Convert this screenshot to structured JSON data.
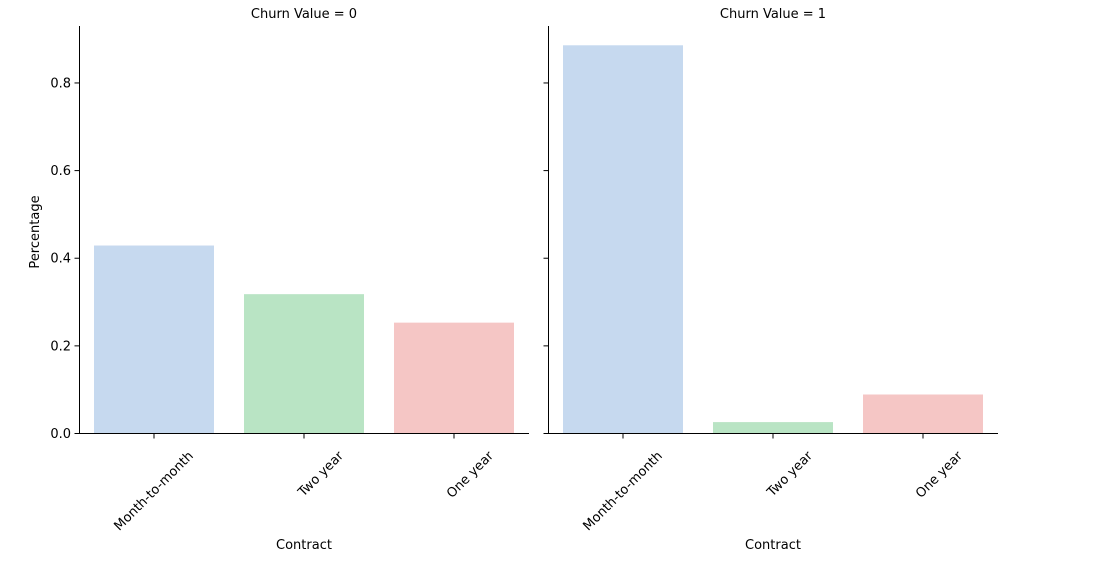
{
  "chart_data": {
    "type": "bar",
    "ylabel": "Percentage",
    "ylim": [
      0,
      0.93
    ],
    "yticks": [
      0.0,
      0.2,
      0.4,
      0.6,
      0.8
    ],
    "ytick_labels": [
      "0.0",
      "0.2",
      "0.4",
      "0.6",
      "0.8"
    ],
    "grid": false,
    "categories": [
      "Month-to-month",
      "Two year",
      "One year"
    ],
    "colors": [
      "#c6d9ef",
      "#b9e4c4",
      "#f5c6c5"
    ],
    "panels": [
      {
        "title": "Churn Value = 0",
        "xlabel": "Contract",
        "values": [
          0.429,
          0.318,
          0.253
        ]
      },
      {
        "title": "Churn Value = 1",
        "xlabel": "Contract",
        "values": [
          0.886,
          0.026,
          0.089
        ]
      }
    ]
  }
}
